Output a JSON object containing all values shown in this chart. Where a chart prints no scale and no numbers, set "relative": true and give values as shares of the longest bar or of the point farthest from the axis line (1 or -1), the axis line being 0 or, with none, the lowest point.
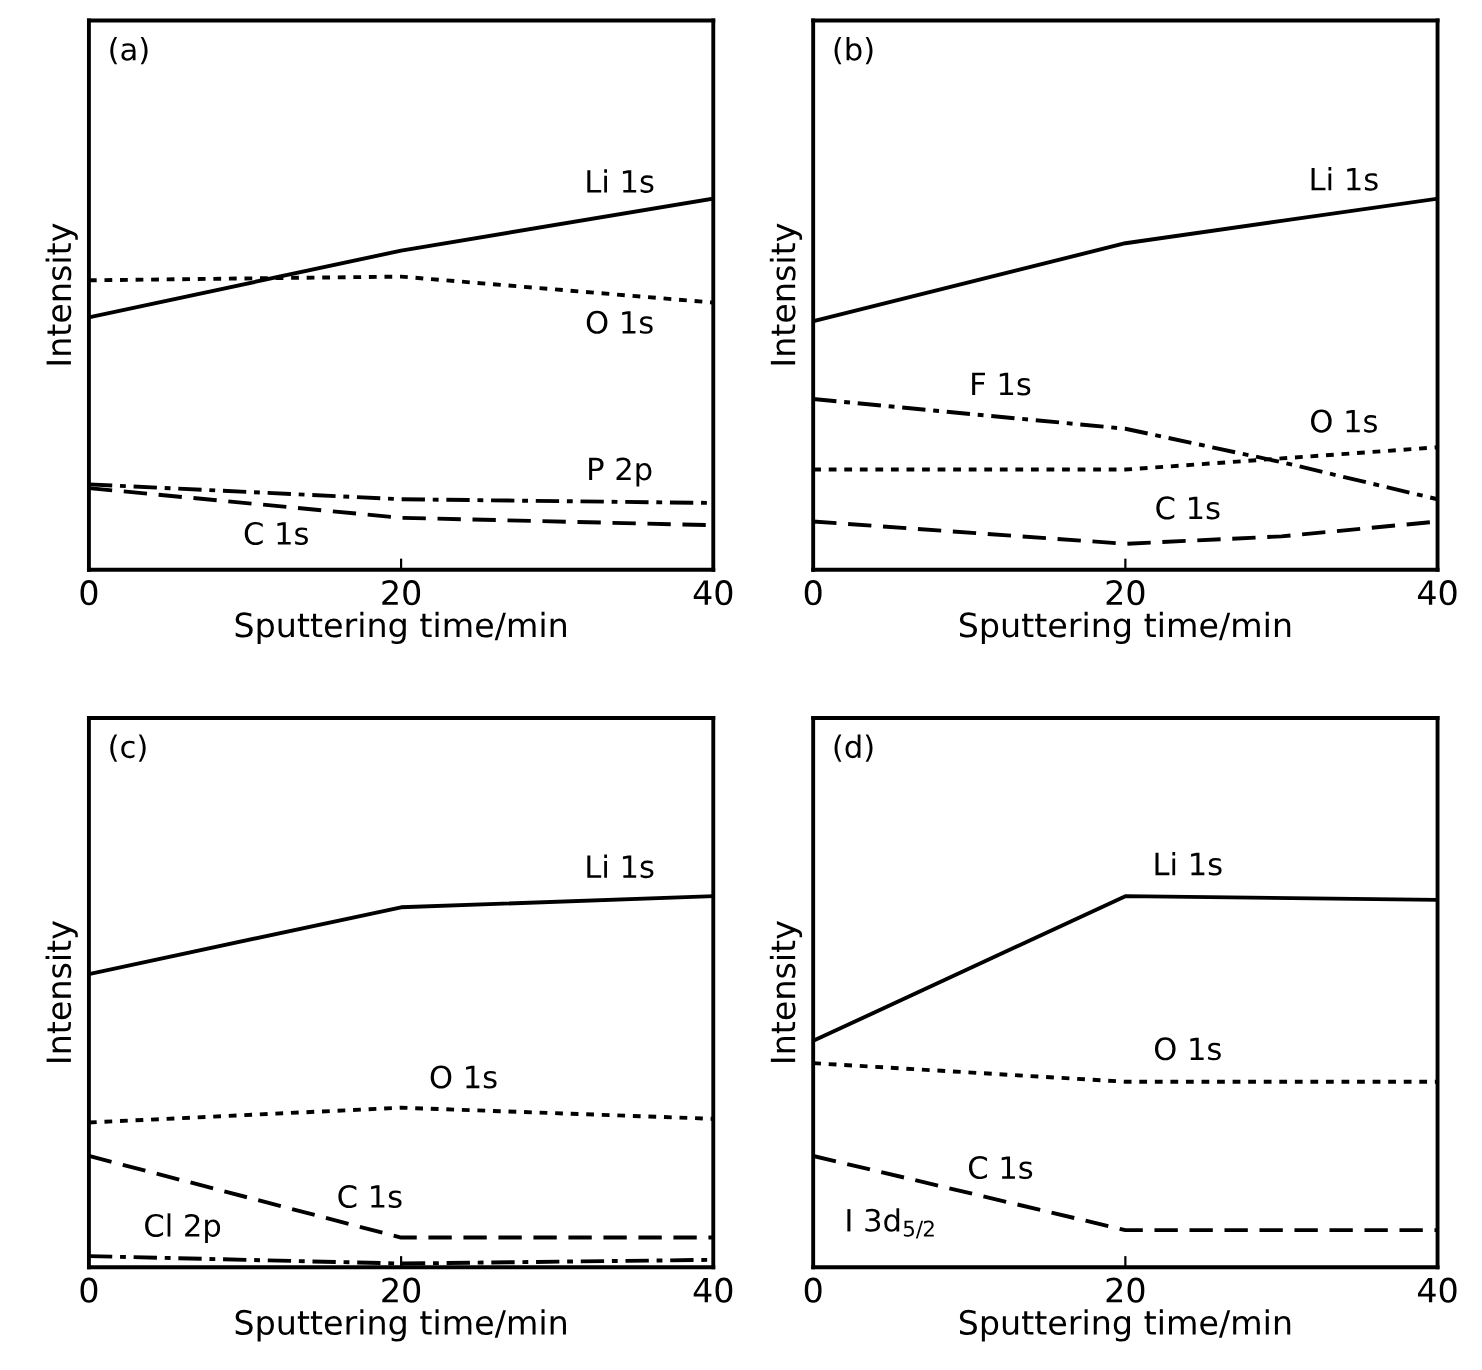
{
  "chart_data": [
    {
      "type": "line",
      "title": "(a)",
      "xlabel": "Sputtering time/min",
      "ylabel": "Intensity",
      "relative": true,
      "x": [
        0,
        20,
        40
      ],
      "xlim": [
        0,
        40
      ],
      "xticks": [
        0,
        20,
        40
      ],
      "grid": false,
      "legend": false,
      "marker": "none",
      "series": [
        {
          "name": "Li 1s",
          "color": "#000000",
          "line_style": "solid",
          "values": [
            0.68,
            0.86,
            1
          ]
        },
        {
          "name": "O 1s",
          "color": "#000000",
          "line_style": "dotted",
          "values": [
            0.78,
            0.79,
            0.72
          ]
        },
        {
          "name": "P 2p",
          "color": "#000000",
          "line_style": "dashdot",
          "values": [
            0.23,
            0.19,
            0.18
          ]
        },
        {
          "name": "C 1s",
          "color": "#000000",
          "line_style": "dashed",
          "values": [
            0.22,
            0.14,
            0.12
          ]
        }
      ]
    },
    {
      "type": "line",
      "title": "(b)",
      "xlabel": "Sputtering time/min",
      "ylabel": "Intensity",
      "relative": true,
      "x": [
        0,
        20,
        30,
        40
      ],
      "xlim": [
        0,
        40
      ],
      "xticks": [
        0,
        20,
        40
      ],
      "grid": false,
      "legend": false,
      "marker": "none",
      "series": [
        {
          "name": "Li 1s",
          "color": "#000000",
          "line_style": "solid",
          "values": [
            0.67,
            0.88,
            0.94,
            1
          ]
        },
        {
          "name": "F 1s",
          "color": "#000000",
          "line_style": "dashdot",
          "values": [
            0.46,
            0.38,
            0.29,
            0.19
          ]
        },
        {
          "name": "O 1s",
          "color": "#000000",
          "line_style": "dotted",
          "values": [
            0.27,
            0.27,
            0.3,
            0.33
          ]
        },
        {
          "name": "C 1s",
          "color": "#000000",
          "line_style": "dashed",
          "values": [
            0.13,
            0.07,
            0.09,
            0.13
          ]
        }
      ]
    },
    {
      "type": "line",
      "title": "(c)",
      "xlabel": "Sputtering time/min",
      "ylabel": "Intensity",
      "relative": true,
      "x": [
        0,
        20,
        40
      ],
      "xlim": [
        0,
        40
      ],
      "xticks": [
        0,
        20,
        40
      ],
      "grid": false,
      "legend": false,
      "marker": "none",
      "series": [
        {
          "name": "Li 1s",
          "color": "#000000",
          "line_style": "solid",
          "values": [
            0.79,
            0.97,
            1
          ]
        },
        {
          "name": "O 1s",
          "color": "#000000",
          "line_style": "dotted",
          "values": [
            0.39,
            0.43,
            0.4
          ]
        },
        {
          "name": "C 1s",
          "color": "#000000",
          "line_style": "dashed",
          "values": [
            0.3,
            0.08,
            0.08
          ]
        },
        {
          "name": "Cl 2p",
          "color": "#000000",
          "line_style": "dashdot",
          "values": [
            0.03,
            0.01,
            0.02
          ]
        }
      ]
    },
    {
      "type": "line",
      "title": "(d)",
      "xlabel": "Sputtering time/min",
      "ylabel": "Intensity",
      "relative": true,
      "x": [
        0,
        20,
        40
      ],
      "xlim": [
        0,
        40
      ],
      "xticks": [
        0,
        20,
        40
      ],
      "grid": false,
      "legend": false,
      "marker": "none",
      "series": [
        {
          "name": "Li 1s",
          "color": "#000000",
          "line_style": "solid",
          "values": [
            0.61,
            1,
            0.99
          ]
        },
        {
          "name": "O 1s",
          "color": "#000000",
          "line_style": "dotted",
          "values": [
            0.55,
            0.5,
            0.5
          ]
        },
        {
          "name": "C 1s",
          "color": "#000000",
          "line_style": "dashed",
          "values": [
            0.3,
            0.1,
            0.1
          ]
        }
      ],
      "annotations": [
        "I 3d$_{5/2}$"
      ]
    }
  ]
}
